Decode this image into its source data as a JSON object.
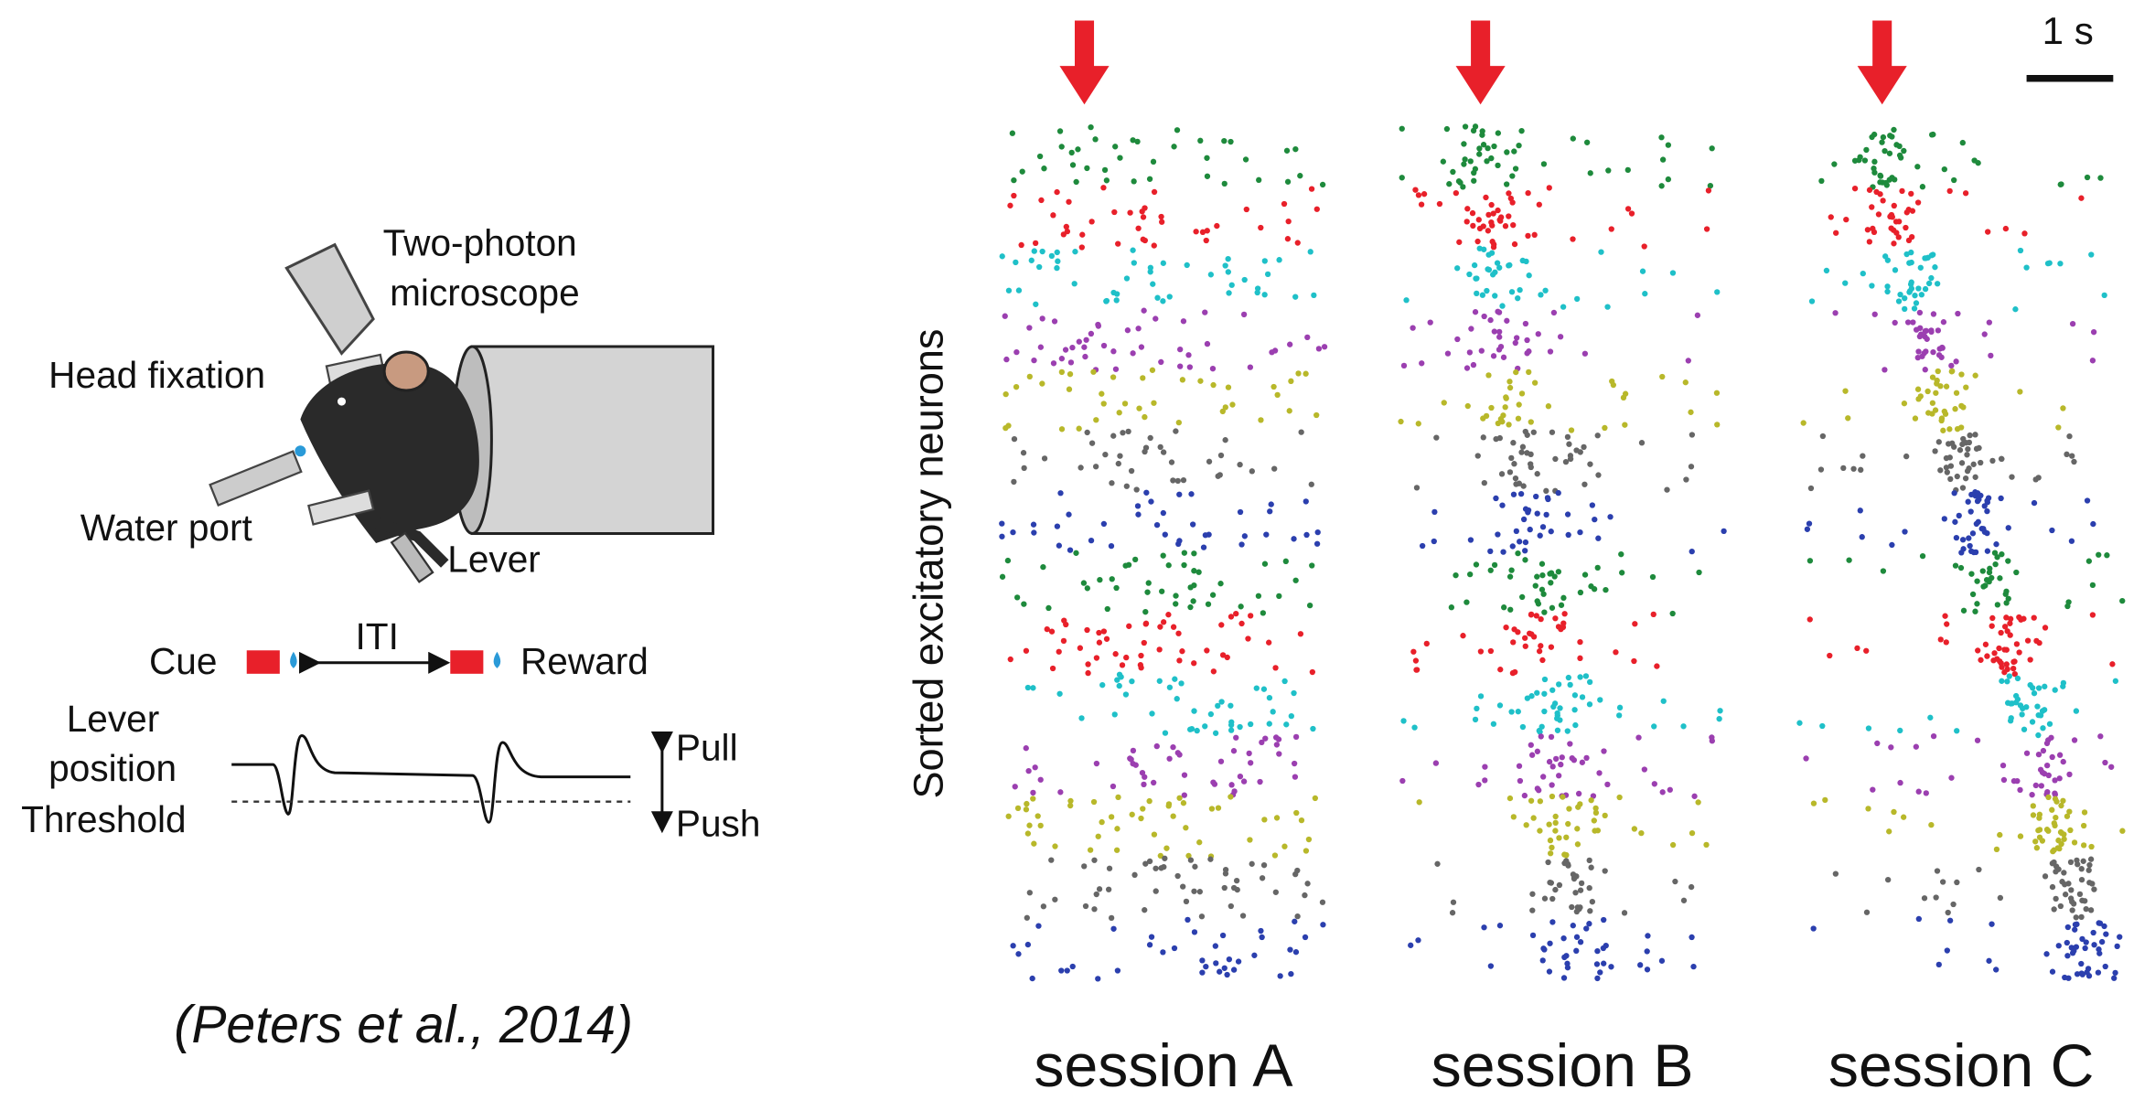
{
  "diagram": {
    "microscope": [
      "Two-photon",
      "microscope"
    ],
    "head_fixation": "Head fixation",
    "water_port": "Water port",
    "lever": "Lever",
    "cue": "Cue",
    "iti": "ITI",
    "reward": "Reward",
    "lever_position": [
      "Lever",
      "position"
    ],
    "threshold": "Threshold",
    "pull": "Pull",
    "push": "Push"
  },
  "citation": "(Peters et al., 2014)",
  "raster": {
    "y_label": "Sorted excitatory neurons",
    "scale_bar": "1 s",
    "sessions": [
      "session A",
      "session B",
      "session C"
    ]
  }
}
